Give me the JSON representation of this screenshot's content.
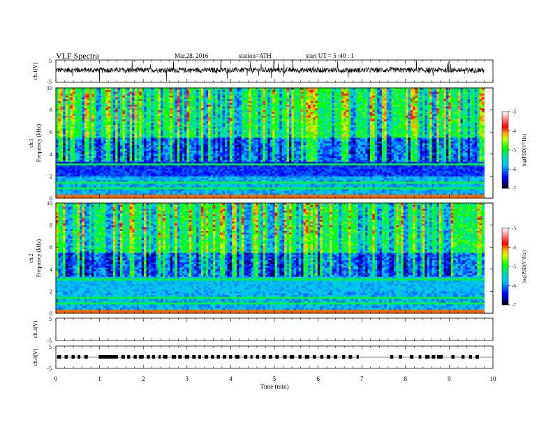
{
  "header": {
    "title": "VLF  Spectra",
    "date": "Mar.28, 2016",
    "station": "station=ATH",
    "start": "start  UT  =   5  :40 : 1"
  },
  "chart_data": [
    {
      "type": "line",
      "id": "ch1",
      "ylabel": "ch.1(V)",
      "ylim": [
        -5,
        5
      ],
      "yticks": [
        "5",
        "-5"
      ],
      "description_values": {
        "baseline": 0.5,
        "noise_amplitude": 1.2,
        "spike_amplitude": 4.5
      }
    },
    {
      "type": "heatmap",
      "id": "spec1",
      "ylabel": [
        "ch.1",
        "Frequency  (kHz)"
      ],
      "ylim": [
        0,
        10
      ],
      "yticks": [
        "0",
        "2",
        "4",
        "6",
        "8",
        "10"
      ],
      "xlim": [
        0,
        9.8
      ],
      "colorbar": {
        "label": "log(PSD(V²/Hz)",
        "range": [
          -7,
          -3
        ],
        "ticks": [
          "-3",
          "-4",
          "-5",
          "-6",
          "-7"
        ]
      }
    },
    {
      "type": "heatmap",
      "id": "spec2",
      "ylabel": [
        "ch.2",
        "Frequency  (kHz)"
      ],
      "ylim": [
        0,
        10
      ],
      "yticks": [
        "0",
        "2",
        "4",
        "6",
        "8",
        "10"
      ],
      "xlim": [
        0,
        9.8
      ],
      "colorbar": {
        "label": "log(PSD(V²/Hz)",
        "range": [
          -7,
          -3
        ],
        "ticks": [
          "-3",
          "-4",
          "-5",
          "-6",
          "-7"
        ]
      }
    },
    {
      "type": "line",
      "id": "ch3",
      "ylabel": "ch.3(V)",
      "ylim": [
        -5,
        5
      ],
      "yticks": [
        "5",
        "-5"
      ],
      "series": []
    },
    {
      "type": "line",
      "id": "ch4",
      "ylabel": "ch.4(V)",
      "ylim": [
        -5,
        5
      ],
      "yticks": [
        "5",
        "-5"
      ],
      "series": [
        {
          "segments": [
            [
              0.03,
              0.12
            ],
            [
              0.2,
              0.27
            ],
            [
              0.36,
              0.43
            ],
            [
              0.5,
              0.56
            ],
            [
              0.65,
              0.73
            ],
            [
              0.98,
              1.42
            ],
            [
              1.5,
              1.58
            ],
            [
              1.63,
              1.7
            ],
            [
              1.78,
              1.85
            ],
            [
              1.9,
              2.01
            ],
            [
              2.08,
              2.15
            ],
            [
              2.2,
              2.27
            ],
            [
              2.35,
              2.4
            ],
            [
              2.45,
              2.55
            ],
            [
              2.65,
              2.75
            ],
            [
              2.8,
              2.88
            ],
            [
              2.95,
              3.05
            ],
            [
              3.12,
              3.2
            ],
            [
              3.26,
              3.32
            ],
            [
              3.4,
              3.48
            ],
            [
              3.55,
              3.62
            ],
            [
              3.68,
              3.75
            ],
            [
              3.82,
              3.9
            ],
            [
              3.96,
              4.03
            ],
            [
              4.1,
              4.2
            ],
            [
              4.3,
              4.38
            ],
            [
              4.45,
              4.5
            ],
            [
              4.58,
              4.65
            ],
            [
              4.72,
              4.8
            ],
            [
              4.87,
              4.95
            ],
            [
              5.02,
              5.1
            ],
            [
              5.2,
              5.28
            ],
            [
              5.35,
              5.45
            ],
            [
              5.55,
              5.62
            ],
            [
              5.7,
              5.8
            ],
            [
              5.88,
              5.95
            ],
            [
              6.05,
              6.12
            ],
            [
              6.2,
              6.28
            ],
            [
              6.36,
              6.44
            ],
            [
              6.55,
              6.62
            ],
            [
              6.7,
              6.78
            ],
            [
              6.88,
              6.93
            ],
            [
              7.65,
              7.72
            ],
            [
              7.85,
              7.92
            ],
            [
              8.1,
              8.18
            ],
            [
              8.3,
              8.36
            ],
            [
              8.45,
              8.55
            ],
            [
              8.6,
              8.68
            ],
            [
              8.72,
              8.85
            ],
            [
              9.05,
              9.12
            ],
            [
              9.28,
              9.35
            ],
            [
              9.45,
              9.52
            ],
            [
              9.6,
              9.68
            ]
          ],
          "high": 0,
          "low": 0
        }
      ]
    }
  ],
  "xaxis": {
    "label": "Time  (min)",
    "lim": [
      0,
      10
    ],
    "ticks": [
      "0",
      "1",
      "2",
      "3",
      "4",
      "5",
      "6",
      "7",
      "8",
      "9",
      "10"
    ]
  }
}
